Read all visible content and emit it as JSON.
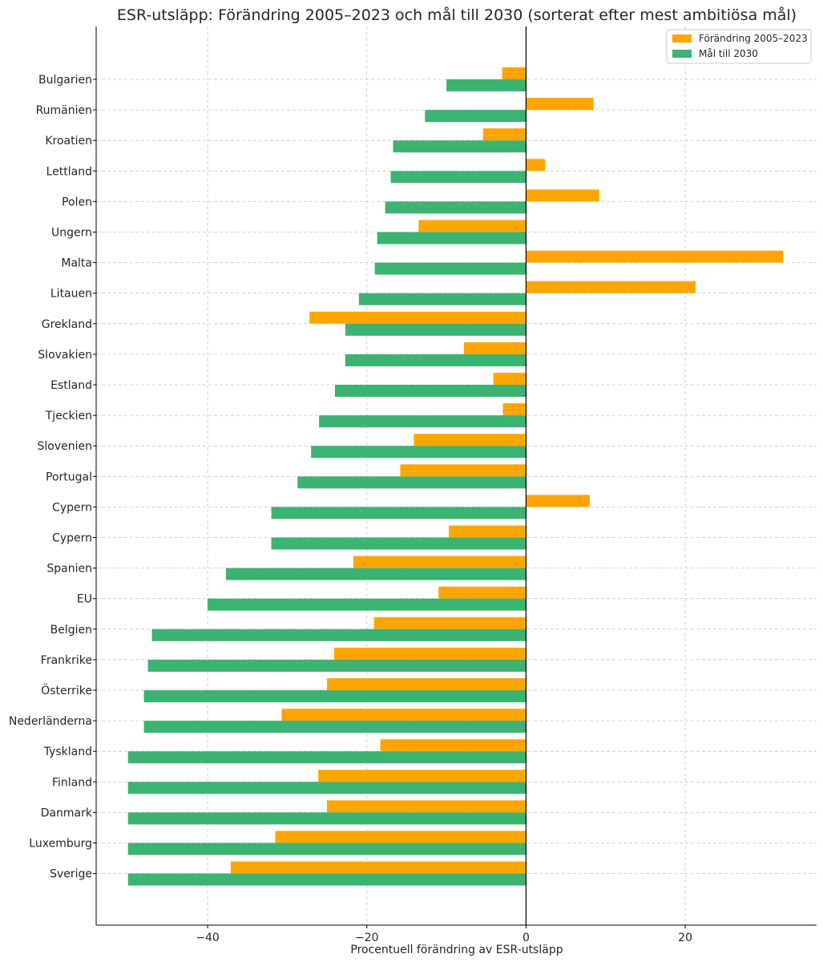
{
  "chart_data": {
    "type": "bar",
    "orientation": "horizontal",
    "title": "ESR-utsläpp: Förändring 2005–2023 och mål till 2030 (sorterat efter mest ambitiösa mål)",
    "xlabel": "Procentuell förändring av ESR-utsläpp",
    "ylabel": "",
    "xlim": [
      -54,
      36.5
    ],
    "xticks": [
      -40,
      -20,
      0,
      20
    ],
    "xtick_labels": [
      "−40",
      "−20",
      "0",
      "20"
    ],
    "grid": true,
    "legend_position": "top-right",
    "categories": [
      "Bulgarien",
      "Rumänien",
      "Kroatien",
      "Lettland",
      "Polen",
      "Ungern",
      "Malta",
      "Litauen",
      "Grekland",
      "Slovakien",
      "Estland",
      "Tjeckien",
      "Slovenien",
      "Portugal",
      "Cypern",
      "Cypern",
      "Spanien",
      "EU",
      "Belgien",
      "Frankrike",
      "Österrike",
      "Nederländerna",
      "Tyskland",
      "Finland",
      "Danmark",
      "Luxemburg",
      "Sverige"
    ],
    "series": [
      {
        "name": "Förändring 2005–2023",
        "color": "#FFA500",
        "values": [
          -3,
          8.5,
          -5.4,
          2.4,
          9.2,
          -13.5,
          32.3,
          21.3,
          -27.2,
          -7.8,
          -4.1,
          -2.9,
          -14.1,
          -15.8,
          8,
          -9.7,
          -21.7,
          -11,
          -19.1,
          -24.1,
          -25,
          -30.7,
          -18.3,
          -26.1,
          -25,
          -31.5,
          -37.1
        ]
      },
      {
        "name": "Mål till 2030",
        "color": "#3CB371",
        "values": [
          -10,
          -12.7,
          -16.7,
          -17,
          -17.7,
          -18.7,
          -19,
          -21,
          -22.7,
          -22.7,
          -24,
          -26,
          -27,
          -28.7,
          -32,
          -32,
          -37.7,
          -40,
          -47,
          -47.5,
          -48,
          -48,
          -50,
          -50,
          -50,
          -50,
          -50
        ]
      }
    ]
  }
}
